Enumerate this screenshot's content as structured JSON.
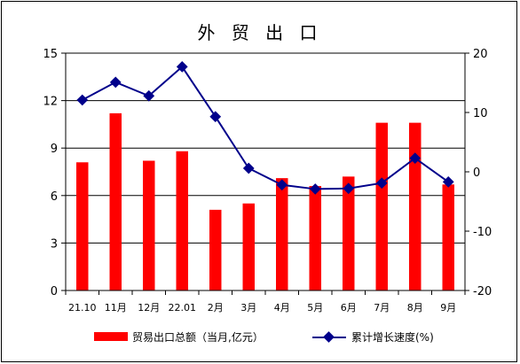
{
  "chart_data": {
    "type": "bar",
    "title": "外 贸 出 口",
    "categories": [
      "21.10",
      "11月",
      "12月",
      "22.01",
      "2月",
      "3月",
      "4月",
      "5月",
      "6月",
      "7月",
      "8月",
      "9月"
    ],
    "series": [
      {
        "name": "贸易出口总额（当月,亿元）",
        "type": "bar",
        "axis": "left",
        "color": "#ff0000",
        "values": [
          8.1,
          11.2,
          8.2,
          8.8,
          5.1,
          5.5,
          7.1,
          6.6,
          7.2,
          10.6,
          10.6,
          6.7
        ]
      },
      {
        "name": "累计增长速度(%)",
        "type": "line",
        "axis": "right",
        "color": "#00008b",
        "values": [
          12.1,
          15.1,
          12.8,
          17.7,
          9.3,
          0.6,
          -2.2,
          -2.9,
          -2.8,
          -1.9,
          2.3,
          -1.7
        ]
      }
    ],
    "y_left": {
      "min": 0,
      "max": 15,
      "ticks": [
        0,
        3,
        6,
        9,
        12,
        15
      ]
    },
    "y_right": {
      "min": -20,
      "max": 20,
      "ticks": [
        -20,
        -10,
        0,
        10,
        20
      ]
    },
    "grid": true,
    "legend_position": "bottom"
  }
}
